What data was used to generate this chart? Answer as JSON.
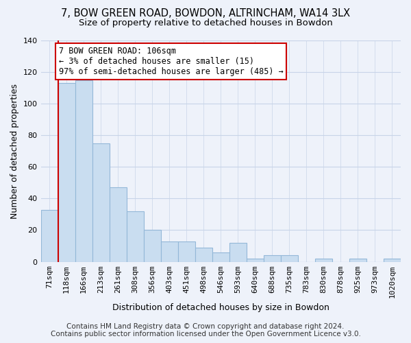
{
  "title": "7, BOW GREEN ROAD, BOWDON, ALTRINCHAM, WA14 3LX",
  "subtitle": "Size of property relative to detached houses in Bowdon",
  "xlabel": "Distribution of detached houses by size in Bowdon",
  "ylabel": "Number of detached properties",
  "categories": [
    "71sqm",
    "118sqm",
    "166sqm",
    "213sqm",
    "261sqm",
    "308sqm",
    "356sqm",
    "403sqm",
    "451sqm",
    "498sqm",
    "546sqm",
    "593sqm",
    "640sqm",
    "688sqm",
    "735sqm",
    "783sqm",
    "830sqm",
    "878sqm",
    "925sqm",
    "973sqm",
    "1020sqm"
  ],
  "values": [
    33,
    113,
    115,
    75,
    47,
    32,
    20,
    13,
    13,
    9,
    6,
    12,
    2,
    4,
    4,
    0,
    2,
    0,
    2,
    0,
    2
  ],
  "bar_color": "#c9ddf0",
  "bar_edge_color": "#93b8d8",
  "marker_line_color": "#cc0000",
  "annotation_title": "7 BOW GREEN ROAD: 106sqm",
  "annotation_line1": "← 3% of detached houses are smaller (15)",
  "annotation_line2": "97% of semi-detached houses are larger (485) →",
  "annotation_box_color": "#ffffff",
  "annotation_box_edge_color": "#cc0000",
  "ylim": [
    0,
    140
  ],
  "yticks": [
    0,
    20,
    40,
    60,
    80,
    100,
    120,
    140
  ],
  "footer_line1": "Contains HM Land Registry data © Crown copyright and database right 2024.",
  "footer_line2": "Contains public sector information licensed under the Open Government Licence v3.0.",
  "bg_color": "#eef2fa",
  "plot_bg_color": "#eef2fa",
  "grid_color": "#c8d4e8",
  "title_fontsize": 10.5,
  "subtitle_fontsize": 9.5,
  "axis_label_fontsize": 9,
  "tick_fontsize": 8,
  "annotation_fontsize": 8.5,
  "footer_fontsize": 7.5
}
